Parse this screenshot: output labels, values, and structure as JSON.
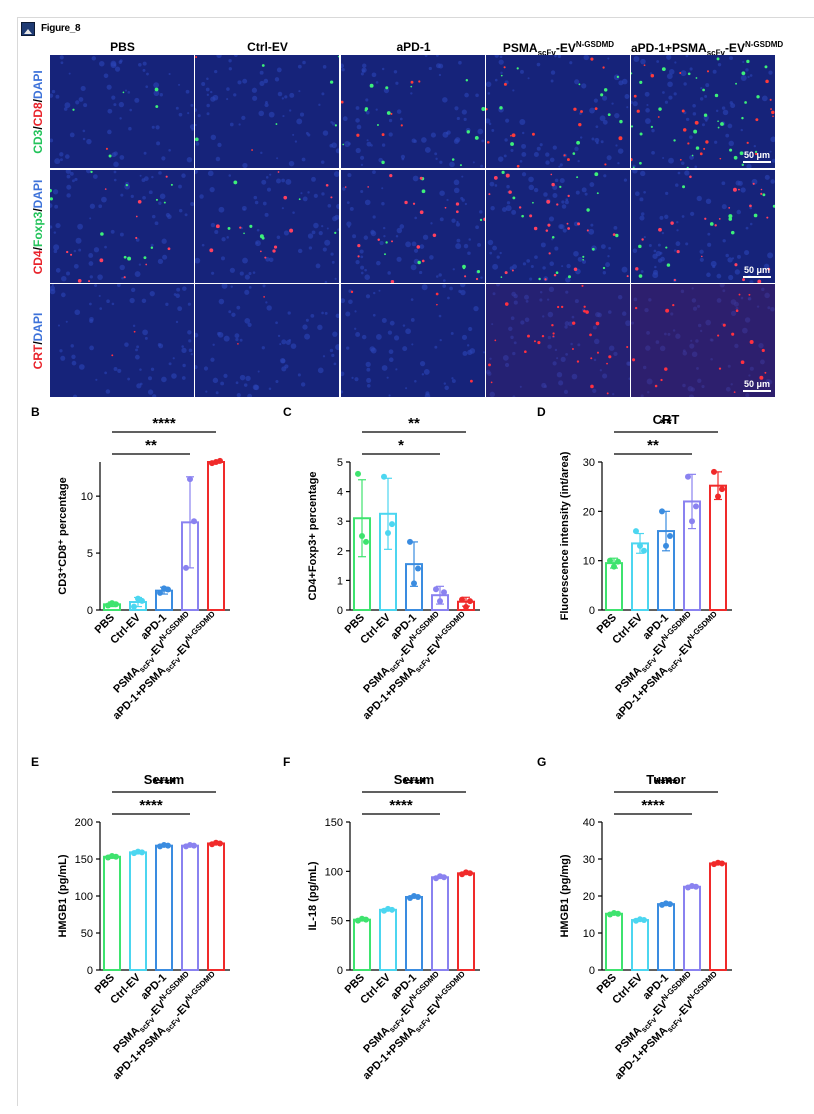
{
  "figure_title": "Figure_8",
  "panel_letters": [
    "B",
    "C",
    "D",
    "E",
    "F",
    "G"
  ],
  "microscopy": {
    "columns": [
      {
        "main": "PBS",
        "sub": "",
        "sup": ""
      },
      {
        "main": "Ctrl-EV",
        "sub": "",
        "sup": ""
      },
      {
        "main": "aPD-1",
        "sub": "",
        "sup": ""
      },
      {
        "main": "PSMA",
        "sub": "scFv",
        "sup": "N-GSDMD",
        "mid": "-EV"
      },
      {
        "main": "aPD-1+PSMA",
        "sub": "scFv",
        "sup": "N-GSDMD",
        "mid": "-EV"
      }
    ],
    "rows": [
      {
        "parts": [
          {
            "text": "CD3",
            "color": "green"
          },
          {
            "text": "/",
            "color": "black"
          },
          {
            "text": "CD8",
            "color": "red"
          },
          {
            "text": "/",
            "color": "black"
          },
          {
            "text": "DAPI",
            "color": "blue"
          }
        ],
        "dot_color": "#3df07a",
        "dot_color2": "#ff3a3a"
      },
      {
        "parts": [
          {
            "text": "CD4",
            "color": "red"
          },
          {
            "text": "/",
            "color": "black"
          },
          {
            "text": "Foxp3",
            "color": "green"
          },
          {
            "text": "/",
            "color": "black"
          },
          {
            "text": "DAPI",
            "color": "blue"
          }
        ],
        "dot_color": "#ff4060",
        "dot_color2": "#3df07a"
      },
      {
        "parts": [
          {
            "text": "CRT",
            "color": "red"
          },
          {
            "text": "/",
            "color": "black"
          },
          {
            "text": "DAPI",
            "color": "blue"
          }
        ],
        "dot_color": "#ff3040",
        "dot_color2": "#ff3040"
      }
    ],
    "scale_bar": "50 μm"
  },
  "group_colors": [
    "#3ee36e",
    "#4cd6f0",
    "#3a8ce0",
    "#8a82f0",
    "#f02a2a"
  ],
  "x_groups": [
    {
      "main": "PBS"
    },
    {
      "main": "Ctrl-EV"
    },
    {
      "main": "aPD-1"
    },
    {
      "main": "PSMA",
      "sub": "scFv",
      "mid": "-EV",
      "sup": "N-GSDMD"
    },
    {
      "main": "aPD-1+PSMA",
      "sub": "scFv",
      "mid": "-EV",
      "sup": "N-GSDMD"
    }
  ],
  "chart_data": [
    {
      "panel": "B",
      "type": "bar",
      "title": "",
      "ylabel": "CD3⁺CD8⁺ percentage",
      "ylim": [
        0,
        13
      ],
      "yticks": [
        0,
        5,
        10
      ],
      "values": [
        0.5,
        0.7,
        1.7,
        7.7,
        13.0
      ],
      "errors": [
        0.2,
        0.4,
        0.3,
        4.0,
        0.1
      ],
      "points": [
        [
          0.4,
          0.6,
          0.5
        ],
        [
          0.3,
          1.0,
          0.8
        ],
        [
          1.5,
          1.9,
          1.8
        ],
        [
          3.7,
          11.5,
          7.8
        ],
        [
          12.9,
          13.0,
          13.1
        ]
      ],
      "significance": [
        {
          "from": 0,
          "to": 3,
          "label": "**"
        },
        {
          "from": 0,
          "to": 4,
          "label": "****"
        }
      ]
    },
    {
      "panel": "C",
      "type": "bar",
      "title": "",
      "ylabel": "CD4+Foxp3+ percentage",
      "ylim": [
        0,
        5
      ],
      "yticks": [
        0,
        1,
        2,
        3,
        4,
        5
      ],
      "values": [
        3.1,
        3.25,
        1.55,
        0.5,
        0.28
      ],
      "errors": [
        1.3,
        1.2,
        0.75,
        0.3,
        0.15
      ],
      "points": [
        [
          4.6,
          2.5,
          2.3
        ],
        [
          4.5,
          2.6,
          2.9
        ],
        [
          2.3,
          0.9,
          1.4
        ],
        [
          0.7,
          0.3,
          0.6
        ],
        [
          0.35,
          0.1,
          0.3
        ]
      ],
      "significance": [
        {
          "from": 0,
          "to": 3,
          "label": "*"
        },
        {
          "from": 0,
          "to": 4,
          "label": "**"
        }
      ]
    },
    {
      "panel": "D",
      "type": "bar",
      "title": "CRT",
      "ylabel": "Fluorescence intensity (int/area)",
      "ylim": [
        0,
        30
      ],
      "yticks": [
        0,
        10,
        20,
        30
      ],
      "values": [
        9.5,
        13.5,
        16.0,
        22.0,
        25.2
      ],
      "errors": [
        1.0,
        2.0,
        4.0,
        5.5,
        2.8
      ],
      "points": [
        [
          10.0,
          8.8,
          9.8
        ],
        [
          16.0,
          13.0,
          12.0
        ],
        [
          20.0,
          13.0,
          15.0
        ],
        [
          27.0,
          18.0,
          21.0
        ],
        [
          28.0,
          23.0,
          24.5
        ]
      ],
      "significance": [
        {
          "from": 0,
          "to": 3,
          "label": "**"
        },
        {
          "from": 0,
          "to": 4,
          "label": "**"
        }
      ]
    },
    {
      "panel": "E",
      "type": "bar",
      "title": "Serum",
      "ylabel": "HMGB1 (pg/mL)",
      "ylim": [
        0,
        200
      ],
      "yticks": [
        0,
        50,
        100,
        150,
        200
      ],
      "values": [
        153,
        159,
        168,
        168,
        171
      ],
      "errors": [
        2,
        2,
        1,
        1,
        1
      ],
      "points": [
        [
          152,
          154,
          153
        ],
        [
          158,
          160,
          159
        ],
        [
          167,
          169,
          168
        ],
        [
          167,
          169,
          168
        ],
        [
          170,
          172,
          171
        ]
      ],
      "significance": [
        {
          "from": 0,
          "to": 3,
          "label": "****"
        },
        {
          "from": 0,
          "to": 4,
          "label": "****"
        }
      ]
    },
    {
      "panel": "F",
      "type": "bar",
      "title": "Serum",
      "ylabel": "IL-18 (pg/mL)",
      "ylim": [
        0,
        150
      ],
      "yticks": [
        0,
        50,
        100,
        150
      ],
      "values": [
        51,
        61,
        74,
        94,
        98
      ],
      "errors": [
        1,
        1,
        1,
        1,
        1
      ],
      "points": [
        [
          50,
          52,
          51
        ],
        [
          60,
          62,
          61
        ],
        [
          73,
          75,
          74
        ],
        [
          93,
          95,
          94
        ],
        [
          97,
          99,
          98
        ]
      ],
      "significance": [
        {
          "from": 0,
          "to": 3,
          "label": "****"
        },
        {
          "from": 0,
          "to": 4,
          "label": "****"
        }
      ]
    },
    {
      "panel": "G",
      "type": "bar",
      "title": "Tumor",
      "ylabel": "HMGB1 (pg/mg)",
      "ylim": [
        0,
        40
      ],
      "yticks": [
        0,
        10,
        20,
        30,
        40
      ],
      "values": [
        15.2,
        13.5,
        17.8,
        22.5,
        28.8
      ],
      "errors": [
        0.2,
        0.2,
        0.2,
        0.3,
        0.3
      ],
      "points": [
        [
          15.0,
          15.4,
          15.2
        ],
        [
          13.3,
          13.7,
          13.5
        ],
        [
          17.6,
          18.0,
          17.8
        ],
        [
          22.3,
          22.7,
          22.5
        ],
        [
          28.6,
          29.0,
          28.8
        ]
      ],
      "significance": [
        {
          "from": 0,
          "to": 3,
          "label": "****"
        },
        {
          "from": 0,
          "to": 4,
          "label": "****"
        }
      ]
    }
  ]
}
